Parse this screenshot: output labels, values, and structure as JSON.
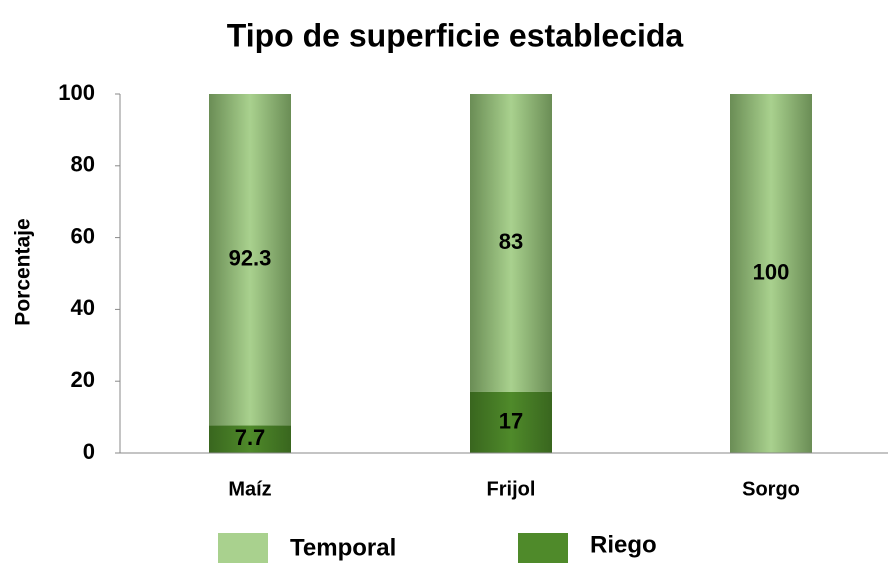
{
  "chart_data": {
    "type": "stacked_bar",
    "title": "Tipo de superficie establecida",
    "ylabel": "Porcentaje",
    "categories": [
      "Maíz",
      "Frijol",
      "Sorgo"
    ],
    "series": [
      {
        "name": "Riego",
        "color": "#4f8a2a",
        "values": [
          7.7,
          17,
          0
        ]
      },
      {
        "name": "Temporal",
        "color": "#a9d18e",
        "values": [
          92.3,
          83,
          100
        ]
      }
    ],
    "legend_order": [
      1,
      0
    ],
    "ylim": [
      0,
      100
    ],
    "yticks": [
      0,
      20,
      40,
      60,
      80,
      100
    ],
    "grid": false
  }
}
